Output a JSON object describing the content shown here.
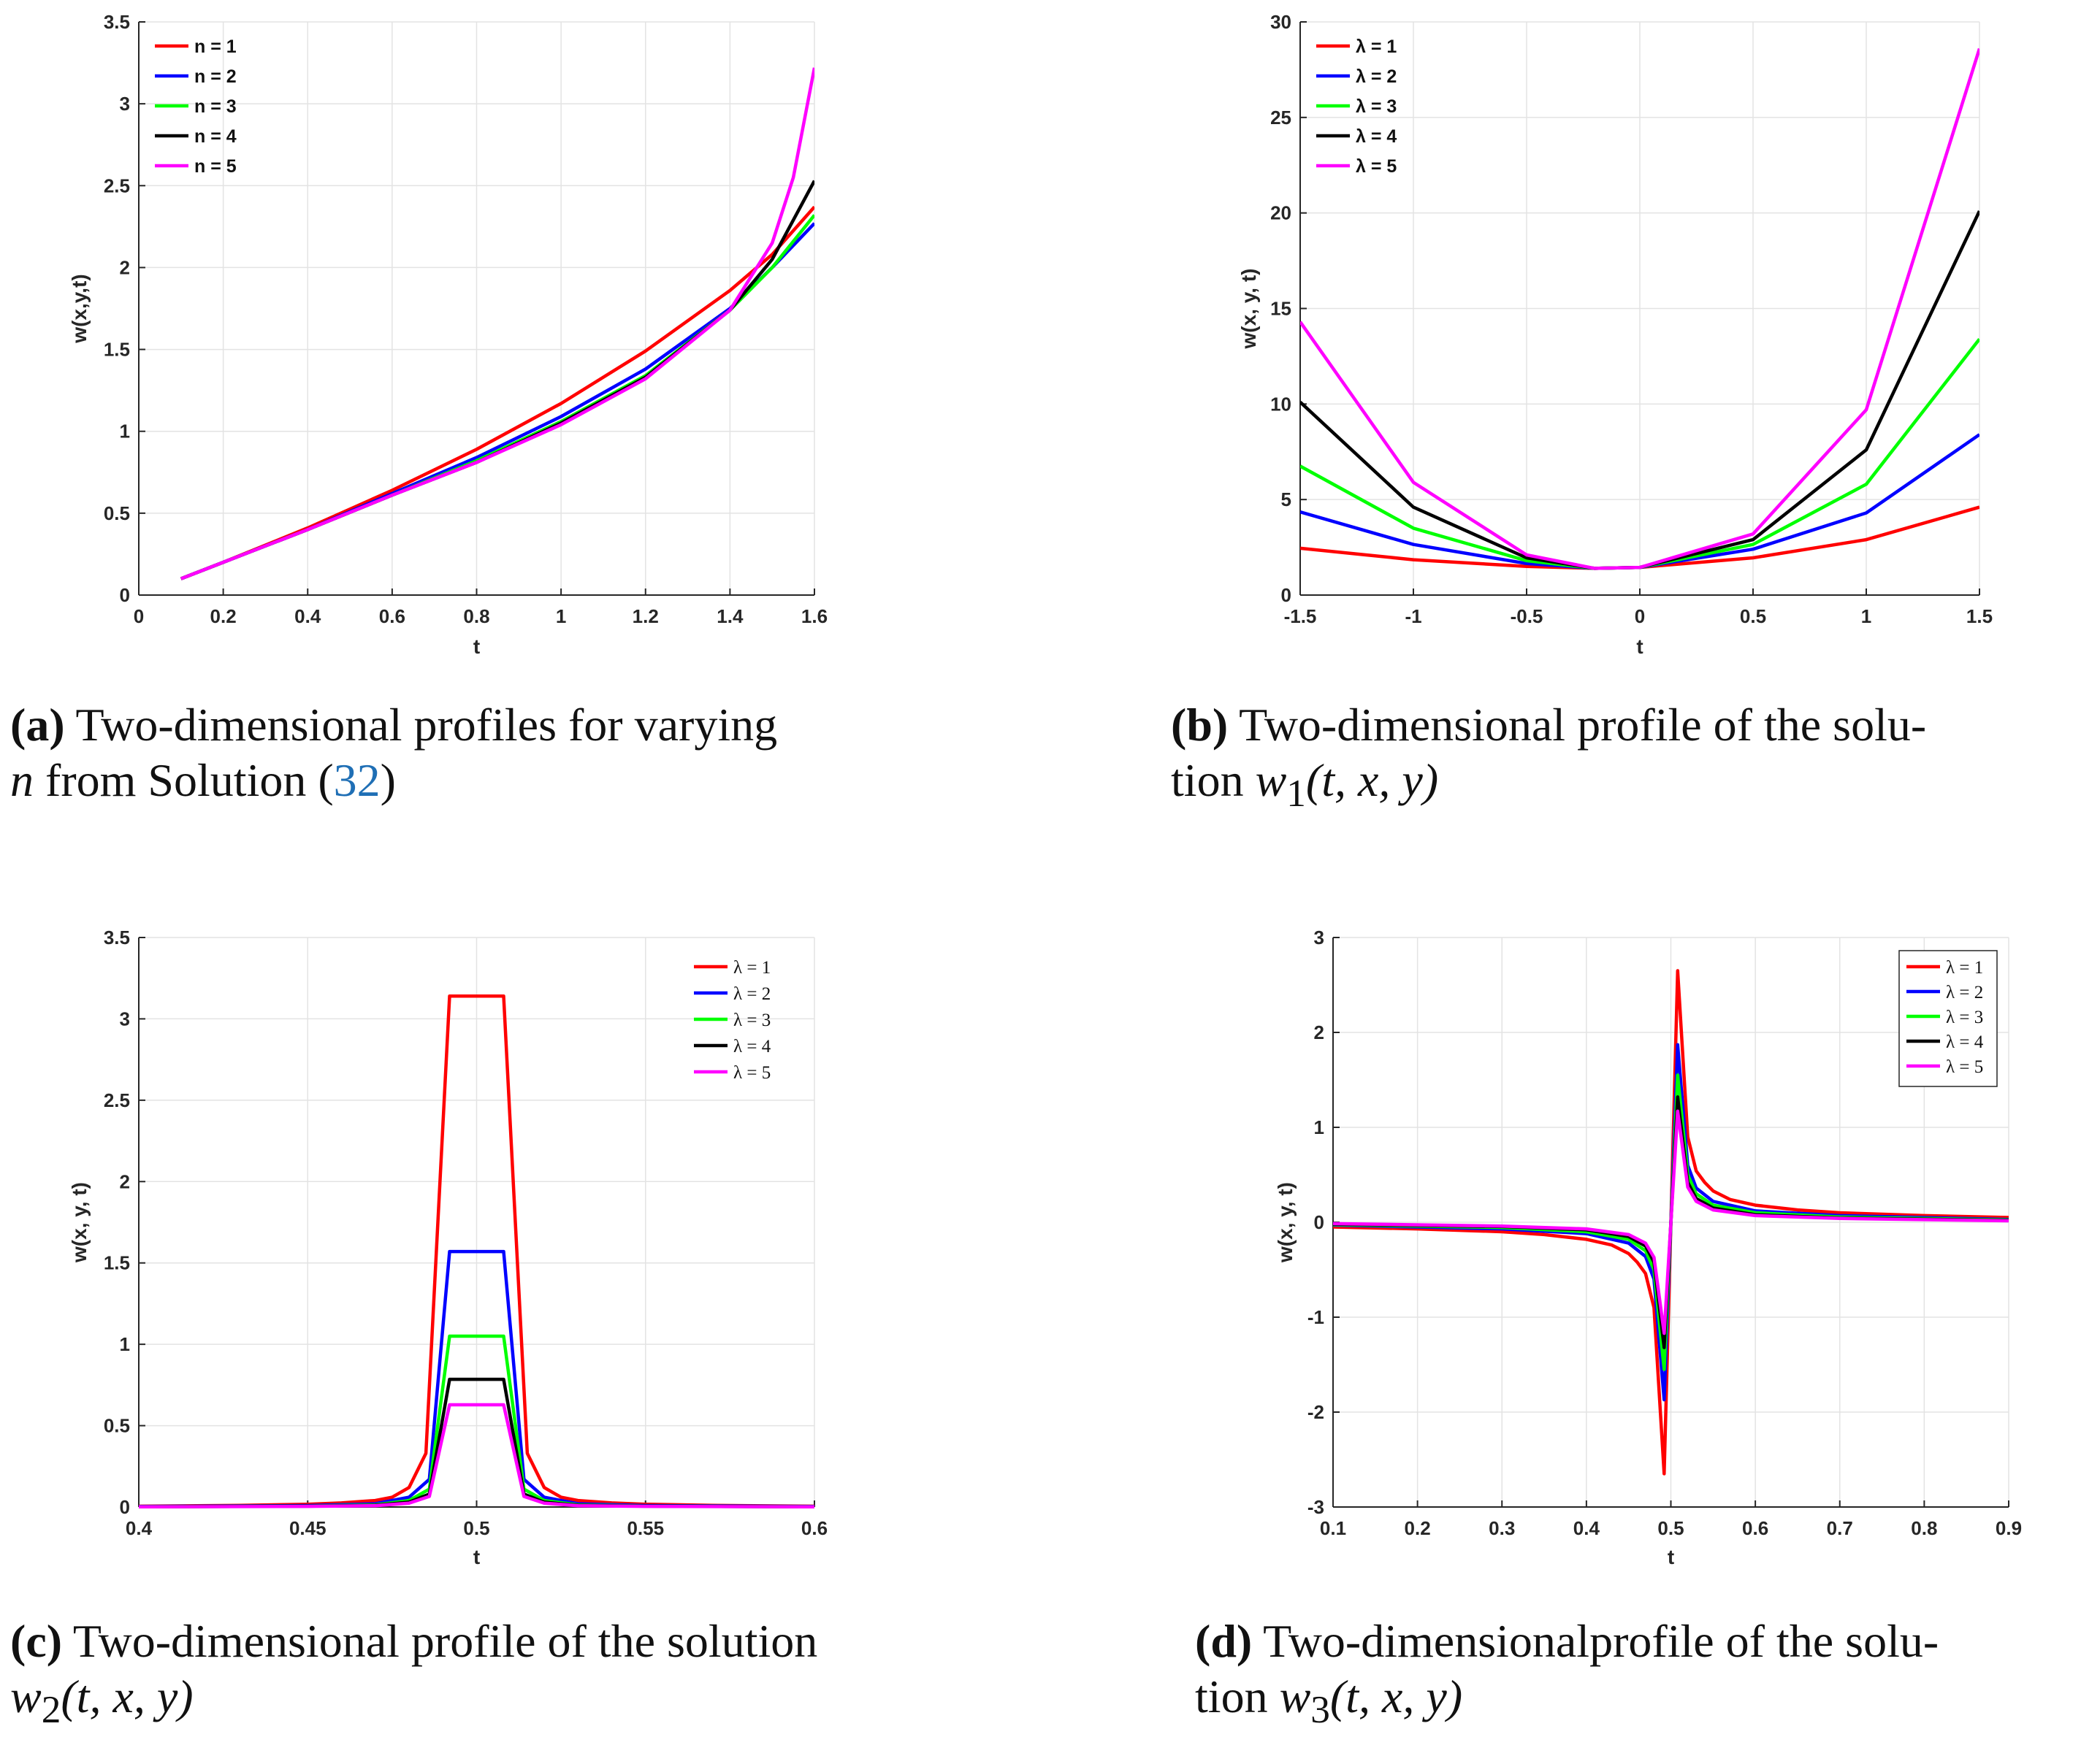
{
  "chart_data": [
    {
      "id": "a",
      "type": "line",
      "title": "",
      "xlabel": "t",
      "ylabel": "w(x,y,t)",
      "xlim": [
        0,
        1.6
      ],
      "ylim": [
        0,
        3.5
      ],
      "xticks": [
        0,
        0.2,
        0.4,
        0.6,
        0.8,
        1,
        1.2,
        1.4,
        1.6
      ],
      "xtick_labels": [
        "0",
        "0.2",
        "0.4",
        "0.6",
        "0.8",
        "1",
        "1.2",
        "1.4",
        "1.6"
      ],
      "yticks": [
        0,
        0.5,
        1,
        1.5,
        2,
        2.5,
        3,
        3.5
      ],
      "ytick_labels": [
        "0",
        "0.5",
        "1",
        "1.5",
        "2",
        "2.5",
        "3",
        "3.5"
      ],
      "grid": true,
      "legend_position": "top-left",
      "legend_style": "sans",
      "series": [
        {
          "name": "n = 1",
          "color": "#ff0000",
          "x": [
            0.1,
            0.2,
            0.4,
            0.6,
            0.8,
            1.0,
            1.2,
            1.4,
            1.5,
            1.6
          ],
          "y": [
            0.1,
            0.2,
            0.41,
            0.64,
            0.89,
            1.17,
            1.49,
            1.86,
            2.08,
            2.37
          ]
        },
        {
          "name": "n = 2",
          "color": "#0000ff",
          "x": [
            0.1,
            0.2,
            0.4,
            0.6,
            0.8,
            1.0,
            1.2,
            1.4,
            1.5,
            1.6
          ],
          "y": [
            0.1,
            0.2,
            0.4,
            0.62,
            0.84,
            1.09,
            1.38,
            1.75,
            2.0,
            2.27
          ]
        },
        {
          "name": "n = 3",
          "color": "#00ff00",
          "x": [
            0.1,
            0.2,
            0.4,
            0.6,
            0.8,
            1.0,
            1.2,
            1.4,
            1.5,
            1.6
          ],
          "y": [
            0.1,
            0.2,
            0.4,
            0.61,
            0.82,
            1.06,
            1.34,
            1.74,
            2.0,
            2.32
          ]
        },
        {
          "name": "n = 4",
          "color": "#000000",
          "x": [
            0.1,
            0.2,
            0.4,
            0.6,
            0.8,
            1.0,
            1.2,
            1.4,
            1.5,
            1.6
          ],
          "y": [
            0.1,
            0.2,
            0.4,
            0.61,
            0.81,
            1.05,
            1.33,
            1.74,
            2.05,
            2.53
          ]
        },
        {
          "name": "n = 5",
          "color": "#ff00ff",
          "x": [
            0.1,
            0.2,
            0.4,
            0.6,
            0.8,
            1.0,
            1.2,
            1.4,
            1.5,
            1.55,
            1.6
          ],
          "y": [
            0.1,
            0.2,
            0.4,
            0.61,
            0.81,
            1.04,
            1.32,
            1.74,
            2.15,
            2.55,
            3.22
          ]
        }
      ]
    },
    {
      "id": "b",
      "type": "line",
      "title": "",
      "xlabel": "t",
      "ylabel": "w(x, y, t)",
      "xlim": [
        -1.5,
        1.5
      ],
      "ylim": [
        0,
        30
      ],
      "xticks": [
        -1.5,
        -1,
        -0.5,
        0,
        0.5,
        1,
        1.5
      ],
      "xtick_labels": [
        "-1.5",
        "-1",
        "-0.5",
        "0",
        "0.5",
        "1",
        "1.5"
      ],
      "yticks": [
        0,
        5,
        10,
        15,
        20,
        25,
        30
      ],
      "ytick_labels": [
        "0",
        "5",
        "10",
        "15",
        "20",
        "25",
        "30"
      ],
      "grid": true,
      "legend_position": "top-left",
      "legend_style": "sans",
      "series": [
        {
          "name": "λ = 1",
          "color": "#ff0000",
          "x": [
            -1.5,
            -1,
            -0.5,
            -0.2,
            0,
            0.5,
            1,
            1.5
          ],
          "y": [
            2.45,
            1.85,
            1.5,
            1.4,
            1.45,
            1.95,
            2.9,
            4.6
          ]
        },
        {
          "name": "λ = 2",
          "color": "#0000ff",
          "x": [
            -1.5,
            -1,
            -0.5,
            -0.2,
            0,
            0.5,
            1,
            1.5
          ],
          "y": [
            4.35,
            2.65,
            1.65,
            1.4,
            1.45,
            2.4,
            4.3,
            8.4
          ]
        },
        {
          "name": "λ = 3",
          "color": "#00ff00",
          "x": [
            -1.5,
            -1,
            -0.5,
            -0.2,
            0,
            0.5,
            1,
            1.5
          ],
          "y": [
            6.75,
            3.5,
            1.8,
            1.4,
            1.45,
            2.65,
            5.8,
            13.4
          ]
        },
        {
          "name": "λ = 4",
          "color": "#000000",
          "x": [
            -1.5,
            -1,
            -0.5,
            -0.2,
            0,
            0.5,
            1,
            1.5
          ],
          "y": [
            10.1,
            4.6,
            1.95,
            1.4,
            1.45,
            2.9,
            7.6,
            20.1
          ]
        },
        {
          "name": "λ = 5",
          "color": "#ff00ff",
          "x": [
            -1.5,
            -1,
            -0.5,
            -0.2,
            0,
            0.5,
            1,
            1.5
          ],
          "y": [
            14.3,
            5.9,
            2.1,
            1.4,
            1.45,
            3.2,
            9.7,
            28.6
          ]
        }
      ]
    },
    {
      "id": "c",
      "type": "line",
      "title": "",
      "xlabel": "t",
      "ylabel": "w(x, y, t)",
      "xlim": [
        0.4,
        0.6
      ],
      "ylim": [
        0,
        3.5
      ],
      "xticks": [
        0.4,
        0.45,
        0.5,
        0.55,
        0.6
      ],
      "xtick_labels": [
        "0.4",
        "0.45",
        "0.5",
        "0.55",
        "0.6"
      ],
      "yticks": [
        0,
        0.5,
        1,
        1.5,
        2,
        2.5,
        3,
        3.5
      ],
      "ytick_labels": [
        "0",
        "0.5",
        "1",
        "1.5",
        "2",
        "2.5",
        "3",
        "3.5"
      ],
      "grid": true,
      "legend_position": "top-right",
      "legend_style": "serif",
      "series": [
        {
          "name": "λ = 1",
          "color": "#ff0000",
          "x": [
            0.4,
            0.43,
            0.45,
            0.46,
            0.47,
            0.475,
            0.48,
            0.485,
            0.492,
            0.508,
            0.515,
            0.52,
            0.525,
            0.53,
            0.54,
            0.55,
            0.57,
            0.6
          ],
          "y": [
            0.005,
            0.01,
            0.017,
            0.025,
            0.04,
            0.06,
            0.12,
            0.33,
            3.14,
            3.14,
            0.33,
            0.12,
            0.06,
            0.04,
            0.025,
            0.017,
            0.01,
            0.005
          ]
        },
        {
          "name": "λ = 2",
          "color": "#0000ff",
          "x": [
            0.4,
            0.45,
            0.47,
            0.48,
            0.486,
            0.492,
            0.508,
            0.514,
            0.52,
            0.53,
            0.55,
            0.6
          ],
          "y": [
            0.003,
            0.009,
            0.02,
            0.06,
            0.17,
            1.57,
            1.57,
            0.17,
            0.06,
            0.02,
            0.009,
            0.003
          ]
        },
        {
          "name": "λ = 3",
          "color": "#00ff00",
          "x": [
            0.4,
            0.45,
            0.47,
            0.48,
            0.486,
            0.492,
            0.508,
            0.514,
            0.52,
            0.53,
            0.55,
            0.6
          ],
          "y": [
            0.002,
            0.006,
            0.013,
            0.04,
            0.11,
            1.05,
            1.05,
            0.11,
            0.04,
            0.013,
            0.006,
            0.002
          ]
        },
        {
          "name": "λ = 4",
          "color": "#000000",
          "x": [
            0.4,
            0.45,
            0.47,
            0.48,
            0.486,
            0.492,
            0.508,
            0.514,
            0.52,
            0.53,
            0.55,
            0.6
          ],
          "y": [
            0.0015,
            0.005,
            0.01,
            0.03,
            0.08,
            0.785,
            0.785,
            0.08,
            0.03,
            0.01,
            0.005,
            0.0015
          ]
        },
        {
          "name": "λ = 5",
          "color": "#ff00ff",
          "x": [
            0.4,
            0.45,
            0.47,
            0.48,
            0.486,
            0.492,
            0.508,
            0.514,
            0.52,
            0.53,
            0.55,
            0.6
          ],
          "y": [
            0.001,
            0.004,
            0.008,
            0.024,
            0.065,
            0.628,
            0.628,
            0.065,
            0.024,
            0.008,
            0.004,
            0.001
          ]
        }
      ]
    },
    {
      "id": "d",
      "type": "line",
      "title": "",
      "xlabel": "t",
      "ylabel": "w(x, y, t)",
      "xlim": [
        0.1,
        0.9
      ],
      "ylim": [
        -3,
        3
      ],
      "xticks": [
        0.1,
        0.2,
        0.3,
        0.4,
        0.5,
        0.6,
        0.7,
        0.8,
        0.9
      ],
      "xtick_labels": [
        "0.1",
        "0.2",
        "0.3",
        "0.4",
        "0.5",
        "0.6",
        "0.7",
        "0.8",
        "0.9"
      ],
      "yticks": [
        -3,
        -2,
        -1,
        0,
        1,
        2,
        3
      ],
      "ytick_labels": [
        "-3",
        "-2",
        "-1",
        "0",
        "1",
        "2",
        "3"
      ],
      "grid": true,
      "legend_position": "top-right",
      "legend_style": "serif-boxed",
      "series": [
        {
          "name": "λ = 1",
          "color": "#ff0000",
          "x": [
            0.1,
            0.2,
            0.3,
            0.35,
            0.4,
            0.43,
            0.45,
            0.46,
            0.47,
            0.48,
            0.492,
            0.508,
            0.52,
            0.53,
            0.54,
            0.55,
            0.57,
            0.6,
            0.65,
            0.7,
            0.8,
            0.9
          ],
          "y": [
            -0.05,
            -0.07,
            -0.1,
            -0.13,
            -0.18,
            -0.24,
            -0.33,
            -0.42,
            -0.54,
            -0.9,
            -2.65,
            2.65,
            0.9,
            0.54,
            0.42,
            0.33,
            0.24,
            0.18,
            0.13,
            0.1,
            0.07,
            0.05
          ]
        },
        {
          "name": "λ = 2",
          "color": "#0000ff",
          "x": [
            0.1,
            0.3,
            0.4,
            0.45,
            0.47,
            0.48,
            0.492,
            0.508,
            0.52,
            0.53,
            0.55,
            0.6,
            0.7,
            0.9
          ],
          "y": [
            -0.03,
            -0.07,
            -0.12,
            -0.22,
            -0.36,
            -0.6,
            -1.87,
            1.87,
            0.6,
            0.36,
            0.22,
            0.12,
            0.07,
            0.03
          ]
        },
        {
          "name": "λ = 3",
          "color": "#00ff00",
          "x": [
            0.1,
            0.3,
            0.4,
            0.45,
            0.47,
            0.48,
            0.492,
            0.508,
            0.52,
            0.53,
            0.55,
            0.6,
            0.7,
            0.9
          ],
          "y": [
            -0.025,
            -0.055,
            -0.1,
            -0.18,
            -0.3,
            -0.5,
            -1.55,
            1.55,
            0.5,
            0.3,
            0.18,
            0.1,
            0.055,
            0.025
          ]
        },
        {
          "name": "λ = 4",
          "color": "#000000",
          "x": [
            0.1,
            0.3,
            0.4,
            0.45,
            0.47,
            0.48,
            0.492,
            0.508,
            0.52,
            0.53,
            0.55,
            0.6,
            0.7,
            0.9
          ],
          "y": [
            -0.02,
            -0.045,
            -0.08,
            -0.15,
            -0.25,
            -0.42,
            -1.32,
            1.32,
            0.42,
            0.25,
            0.15,
            0.08,
            0.045,
            0.02
          ]
        },
        {
          "name": "λ = 5",
          "color": "#ff00ff",
          "x": [
            0.1,
            0.3,
            0.4,
            0.45,
            0.47,
            0.48,
            0.492,
            0.508,
            0.52,
            0.53,
            0.55,
            0.6,
            0.7,
            0.9
          ],
          "y": [
            -0.015,
            -0.04,
            -0.07,
            -0.13,
            -0.22,
            -0.37,
            -1.17,
            1.17,
            0.37,
            0.22,
            0.13,
            0.07,
            0.04,
            0.015
          ]
        }
      ]
    }
  ],
  "captions": {
    "a": {
      "label": "(a)",
      "line1": " Two-dimensional profiles for varying",
      "math": "n",
      "line2_mid": " from Solution (",
      "ref": "32",
      "line2_end": ")"
    },
    "b": {
      "label": "(b)",
      "line1": " Two-dimensional profile of the solu-",
      "line2_pre": "tion ",
      "math": "w",
      "sub": "1",
      "args": "(t, x, y)"
    },
    "c": {
      "label": "(c)",
      "line1": " Two-dimensional profile of the solution",
      "math": "w",
      "sub": "2",
      "args": "(t, x, y)"
    },
    "d": {
      "label": "(d)",
      "line1": " Two-dimensionalprofile of the solu-",
      "line2_pre": "tion ",
      "math": "w",
      "sub": "3",
      "args": "(t, x, y)"
    }
  }
}
